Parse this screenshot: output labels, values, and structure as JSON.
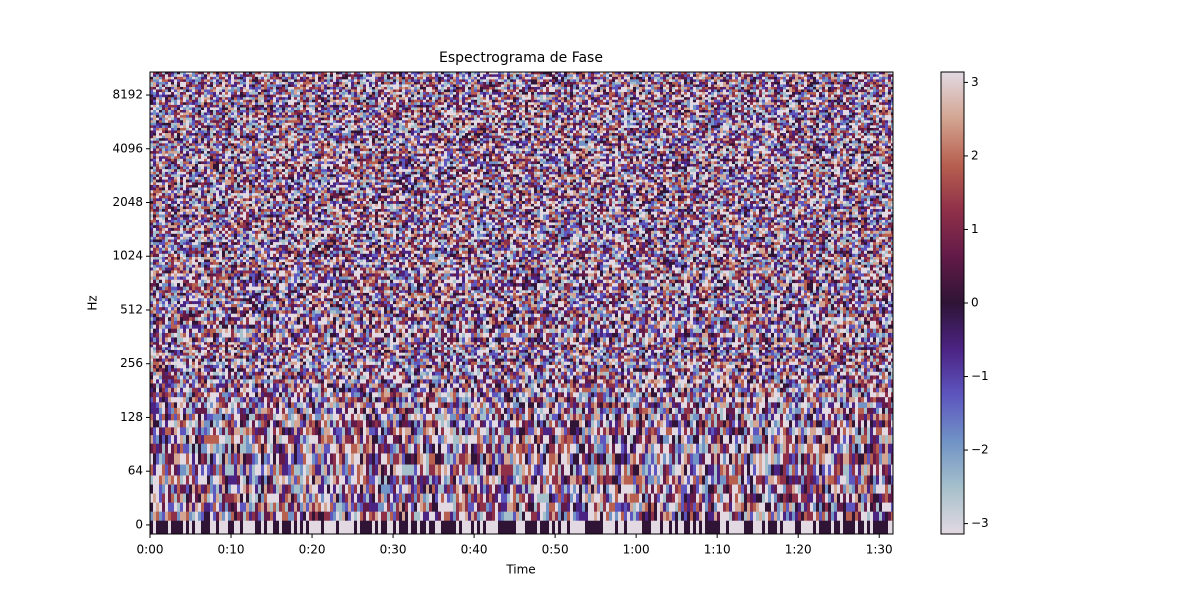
{
  "chart_data": {
    "type": "spectrogram",
    "title": "Espectrograma de Fase",
    "x_label": "Time",
    "y_label": "Hz",
    "xlim": [
      0,
      91.7
    ],
    "xticks": [
      {
        "value": 0,
        "label": "0:00"
      },
      {
        "value": 10,
        "label": "0:10"
      },
      {
        "value": 20,
        "label": "0:20"
      },
      {
        "value": 30,
        "label": "0:30"
      },
      {
        "value": 40,
        "label": "0:40"
      },
      {
        "value": 50,
        "label": "0:50"
      },
      {
        "value": 60,
        "label": "1:00"
      },
      {
        "value": 70,
        "label": "1:10"
      },
      {
        "value": 80,
        "label": "1:20"
      },
      {
        "value": 90,
        "label": "1:30"
      }
    ],
    "ylim": [
      -10.8,
      11025
    ],
    "yscale": {
      "type": "symlog",
      "base": 2,
      "linthresh": 64
    },
    "yticks": [
      0,
      64,
      128,
      256,
      512,
      1024,
      2048,
      4096,
      8192
    ],
    "clim": [
      -3.14159,
      3.14159
    ],
    "cticks": [
      {
        "value": -3,
        "label": "−3"
      },
      {
        "value": -2,
        "label": "−2"
      },
      {
        "value": -1,
        "label": "−1"
      },
      0,
      1,
      2,
      3
    ],
    "colormap": [
      "#e2d9e2",
      "#a6c0cb",
      "#7193c6",
      "#5d56bf",
      "#4b2383",
      "#2f1436",
      "#621a48",
      "#8f3049",
      "#b8604f",
      "#d3a592",
      "#e2d9e2"
    ]
  }
}
